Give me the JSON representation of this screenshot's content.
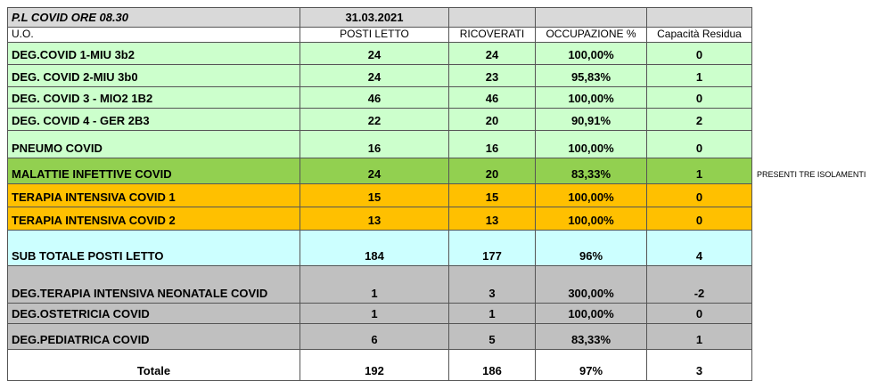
{
  "table": {
    "title_row": [
      "P.L COVID ORE 08.30",
      "31.03.2021"
    ],
    "header": [
      "U.O.",
      "POSTI LETTO",
      "RICOVERATI",
      "OCCUPAZIONE %",
      "Capacità Residua"
    ],
    "rows": [
      [
        "DEG.COVID 1-MIU 3b2",
        "24",
        "24",
        "100,00%",
        "0"
      ],
      [
        "DEG. COVID 2-MIU 3b0",
        "24",
        "23",
        "95,83%",
        "1"
      ],
      [
        "DEG. COVID 3 - MIO2 1B2",
        "46",
        "46",
        "100,00%",
        "0"
      ],
      [
        "DEG. COVID 4 - GER 2B3",
        "22",
        "20",
        "90,91%",
        "2"
      ],
      [
        "PNEUMO COVID",
        "16",
        "16",
        "100,00%",
        "0"
      ],
      [
        "MALATTIE INFETTIVE COVID",
        "24",
        "20",
        "83,33%",
        "1"
      ],
      [
        "TERAPIA INTENSIVA COVID 1",
        "15",
        "15",
        "100,00%",
        "0"
      ],
      [
        "TERAPIA INTENSIVA COVID 2",
        "13",
        "13",
        "100,00%",
        "0"
      ],
      [
        "SUB TOTALE POSTI LETTO",
        "184",
        "177",
        "96%",
        "4"
      ],
      [
        "DEG.TERAPIA INTENSIVA NEONATALE COVID",
        "1",
        "3",
        "300,00%",
        "-2"
      ],
      [
        "DEG.OSTETRICIA COVID",
        "1",
        "1",
        "100,00%",
        "0"
      ],
      [
        "DEG.PEDIATRICA COVID",
        "6",
        "5",
        "83,33%",
        "1"
      ],
      [
        "Totale",
        "192",
        "186",
        "97%",
        "3"
      ]
    ]
  },
  "note": "PRESENTI TRE ISOLAMENTI"
}
